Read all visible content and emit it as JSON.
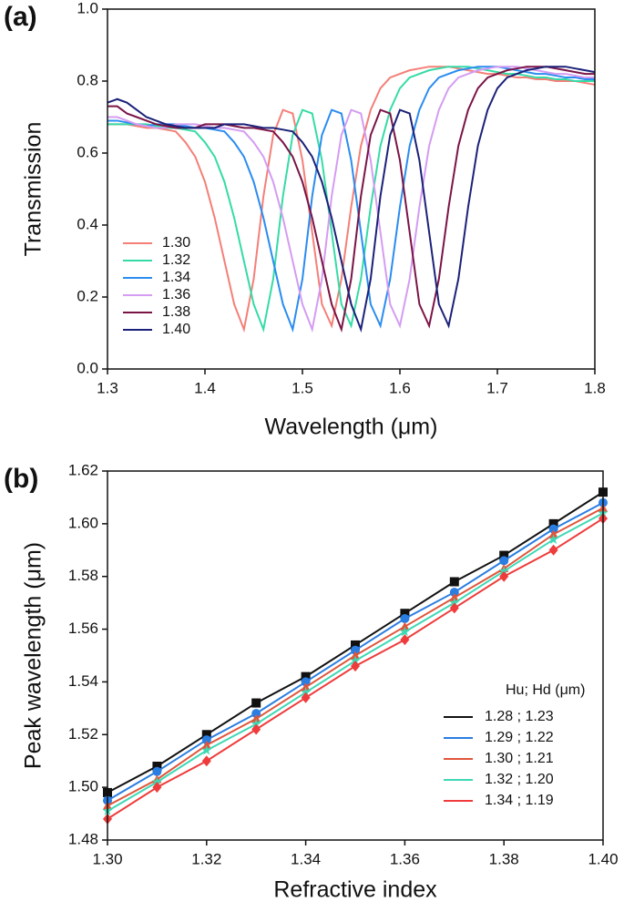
{
  "chart_data": [
    {
      "type": "line",
      "panel_label": "(a)",
      "x_label": "Wavelength (μm)",
      "y_label": "Transmission",
      "xlim": [
        1.3,
        1.8
      ],
      "ylim": [
        0,
        1
      ],
      "xticks": [
        1.3,
        1.4,
        1.5,
        1.6,
        1.7,
        1.8
      ],
      "yticks": [
        {
          "value": 0,
          "label": "0.0"
        },
        0.2,
        0.4,
        0.6,
        0.8,
        {
          "value": 1,
          "label": "1.0"
        }
      ],
      "legend": "lower left",
      "x": [
        1.3,
        1.31,
        1.32,
        1.33,
        1.34,
        1.35,
        1.36,
        1.37,
        1.38,
        1.39,
        1.4,
        1.41,
        1.42,
        1.43,
        1.44,
        1.45,
        1.46,
        1.47,
        1.48,
        1.49,
        1.5,
        1.51,
        1.52,
        1.53,
        1.54,
        1.55,
        1.56,
        1.57,
        1.58,
        1.59,
        1.6,
        1.61,
        1.62,
        1.63,
        1.64,
        1.65,
        1.66,
        1.67,
        1.68,
        1.69,
        1.7,
        1.71,
        1.72,
        1.73,
        1.74,
        1.75,
        1.76,
        1.77,
        1.78,
        1.79,
        1.8
      ],
      "series": [
        {
          "name": "1.30",
          "color": "#f47f78",
          "values": [
            0.68,
            0.68,
            0.68,
            0.675,
            0.67,
            0.67,
            0.665,
            0.66,
            0.63,
            0.59,
            0.52,
            0.42,
            0.3,
            0.18,
            0.11,
            0.25,
            0.48,
            0.65,
            0.72,
            0.71,
            0.58,
            0.38,
            0.18,
            0.12,
            0.25,
            0.45,
            0.62,
            0.72,
            0.78,
            0.81,
            0.82,
            0.83,
            0.835,
            0.84,
            0.84,
            0.84,
            0.835,
            0.83,
            0.825,
            0.82,
            0.82,
            0.815,
            0.81,
            0.81,
            0.805,
            0.805,
            0.8,
            0.8,
            0.8,
            0.795,
            0.79
          ]
        },
        {
          "name": "1.32",
          "color": "#35dba6",
          "values": [
            0.68,
            0.68,
            0.68,
            0.68,
            0.68,
            0.675,
            0.67,
            0.67,
            0.665,
            0.66,
            0.63,
            0.59,
            0.52,
            0.42,
            0.3,
            0.18,
            0.11,
            0.25,
            0.48,
            0.65,
            0.72,
            0.71,
            0.58,
            0.38,
            0.18,
            0.12,
            0.25,
            0.45,
            0.62,
            0.72,
            0.78,
            0.81,
            0.82,
            0.83,
            0.835,
            0.84,
            0.84,
            0.84,
            0.835,
            0.83,
            0.825,
            0.82,
            0.82,
            0.815,
            0.81,
            0.81,
            0.805,
            0.805,
            0.8,
            0.8,
            0.8
          ]
        },
        {
          "name": "1.34",
          "color": "#2a8cf0",
          "values": [
            0.69,
            0.69,
            0.685,
            0.68,
            0.675,
            0.68,
            0.68,
            0.68,
            0.675,
            0.67,
            0.67,
            0.665,
            0.66,
            0.63,
            0.59,
            0.52,
            0.42,
            0.3,
            0.18,
            0.11,
            0.25,
            0.48,
            0.65,
            0.72,
            0.71,
            0.58,
            0.38,
            0.18,
            0.12,
            0.25,
            0.45,
            0.62,
            0.72,
            0.78,
            0.81,
            0.82,
            0.83,
            0.835,
            0.84,
            0.84,
            0.84,
            0.835,
            0.83,
            0.825,
            0.82,
            0.82,
            0.815,
            0.81,
            0.81,
            0.805,
            0.805
          ]
        },
        {
          "name": "1.36",
          "color": "#d49cf2",
          "values": [
            0.7,
            0.7,
            0.69,
            0.68,
            0.675,
            0.67,
            0.67,
            0.68,
            0.68,
            0.68,
            0.675,
            0.67,
            0.67,
            0.665,
            0.66,
            0.63,
            0.59,
            0.52,
            0.42,
            0.3,
            0.18,
            0.11,
            0.25,
            0.48,
            0.65,
            0.72,
            0.71,
            0.58,
            0.38,
            0.18,
            0.12,
            0.25,
            0.45,
            0.62,
            0.72,
            0.78,
            0.81,
            0.82,
            0.83,
            0.835,
            0.84,
            0.84,
            0.84,
            0.835,
            0.83,
            0.825,
            0.82,
            0.82,
            0.815,
            0.81,
            0.81
          ]
        },
        {
          "name": "1.38",
          "color": "#7a1446",
          "values": [
            0.73,
            0.73,
            0.71,
            0.7,
            0.69,
            0.68,
            0.675,
            0.67,
            0.67,
            0.67,
            0.68,
            0.68,
            0.68,
            0.675,
            0.67,
            0.67,
            0.665,
            0.66,
            0.63,
            0.59,
            0.52,
            0.42,
            0.3,
            0.18,
            0.11,
            0.25,
            0.48,
            0.65,
            0.72,
            0.71,
            0.58,
            0.38,
            0.18,
            0.12,
            0.25,
            0.45,
            0.62,
            0.72,
            0.78,
            0.81,
            0.82,
            0.83,
            0.835,
            0.84,
            0.84,
            0.84,
            0.835,
            0.83,
            0.825,
            0.82,
            0.82
          ]
        },
        {
          "name": "1.40",
          "color": "#1b2178",
          "values": [
            0.74,
            0.75,
            0.74,
            0.72,
            0.7,
            0.69,
            0.68,
            0.675,
            0.67,
            0.67,
            0.67,
            0.67,
            0.68,
            0.68,
            0.68,
            0.675,
            0.67,
            0.67,
            0.665,
            0.66,
            0.63,
            0.59,
            0.52,
            0.42,
            0.3,
            0.18,
            0.11,
            0.25,
            0.48,
            0.65,
            0.72,
            0.71,
            0.58,
            0.38,
            0.18,
            0.12,
            0.25,
            0.45,
            0.62,
            0.72,
            0.78,
            0.81,
            0.82,
            0.83,
            0.835,
            0.84,
            0.84,
            0.84,
            0.835,
            0.83,
            0.825
          ]
        }
      ]
    },
    {
      "type": "line",
      "panel_label": "(b)",
      "x_label": "Refractive index",
      "y_label": "Peak wavelength (μm)",
      "xlim": [
        1.3,
        1.4
      ],
      "ylim": [
        1.48,
        1.62
      ],
      "xticks": [
        {
          "value": 1.3,
          "label": "1.30"
        },
        1.32,
        1.34,
        1.36,
        1.38,
        {
          "value": 1.4,
          "label": "1.40"
        }
      ],
      "yticks": [
        1.48,
        {
          "value": 1.5,
          "label": "1.50"
        },
        1.52,
        1.54,
        1.56,
        1.58,
        {
          "value": 1.6,
          "label": "1.60"
        },
        1.62
      ],
      "legend": "lower right",
      "legend_title": "Hu; Hd (μm)",
      "x": [
        1.3,
        1.31,
        1.32,
        1.33,
        1.34,
        1.35,
        1.36,
        1.37,
        1.38,
        1.39,
        1.4
      ],
      "series": [
        {
          "name": "1.28 ; 1.23",
          "color": "#111111",
          "marker": "square",
          "values": [
            1.498,
            1.508,
            1.52,
            1.532,
            1.542,
            1.554,
            1.566,
            1.578,
            1.588,
            1.6,
            1.612
          ]
        },
        {
          "name": "1.29 ; 1.22",
          "color": "#2a7de1",
          "marker": "circle",
          "values": [
            1.495,
            1.506,
            1.518,
            1.528,
            1.54,
            1.552,
            1.564,
            1.574,
            1.586,
            1.598,
            1.608
          ]
        },
        {
          "name": "1.30 ; 1.21",
          "color": "#e0553a",
          "marker": "triangle",
          "values": [
            1.493,
            1.503,
            1.516,
            1.526,
            1.538,
            1.55,
            1.561,
            1.572,
            1.583,
            1.596,
            1.606
          ]
        },
        {
          "name": "1.32 ; 1.20",
          "color": "#3fd8b4",
          "marker": "star",
          "values": [
            1.491,
            1.502,
            1.514,
            1.524,
            1.536,
            1.548,
            1.559,
            1.57,
            1.582,
            1.594,
            1.604
          ]
        },
        {
          "name": "1.34 ; 1.19",
          "color": "#ef3b3b",
          "marker": "diamond",
          "values": [
            1.488,
            1.5,
            1.51,
            1.522,
            1.534,
            1.546,
            1.556,
            1.568,
            1.58,
            1.59,
            1.602
          ]
        }
      ]
    }
  ]
}
